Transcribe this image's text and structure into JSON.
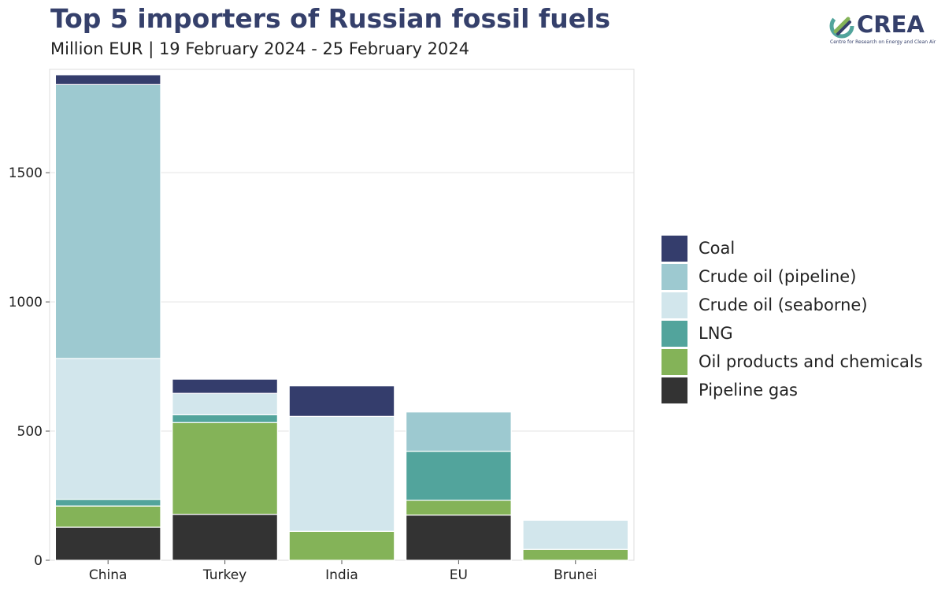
{
  "title": "Top 5 importers of Russian fossil fuels",
  "subtitle": "Million EUR | 19 February 2024 - 25 February 2024",
  "logo": {
    "word": "CREA",
    "tagline": "Centre for Research on Energy and Clean Air",
    "icon": "crea-leaf-icon"
  },
  "chart_data": {
    "type": "bar",
    "stacked": true,
    "categories": [
      "China",
      "Turkey",
      "India",
      "EU",
      "Brunei"
    ],
    "ylim": [
      0,
      1900
    ],
    "yticks": [
      0,
      500,
      1000,
      1500
    ],
    "grid": true,
    "legend_position": "right",
    "series": [
      {
        "name": "Pipeline gas",
        "color": "#333333",
        "values": [
          128,
          178,
          0,
          175,
          0
        ]
      },
      {
        "name": "Oil products and chemicals",
        "color": "#84b358",
        "values": [
          82,
          355,
          112,
          57,
          42
        ]
      },
      {
        "name": "LNG",
        "color": "#52a49c",
        "values": [
          26,
          30,
          0,
          190,
          0
        ]
      },
      {
        "name": "Crude oil (seaborne)",
        "color": "#d2e6ec",
        "values": [
          545,
          83,
          445,
          0,
          113
        ]
      },
      {
        "name": "Crude oil (pipeline)",
        "color": "#9dc9d0",
        "values": [
          1060,
          0,
          0,
          152,
          0
        ]
      },
      {
        "name": "Coal",
        "color": "#343d6c",
        "values": [
          38,
          55,
          118,
          0,
          0
        ]
      }
    ],
    "legend_order": [
      "Coal",
      "Crude oil (pipeline)",
      "Crude oil (seaborne)",
      "LNG",
      "Oil products and chemicals",
      "Pipeline gas"
    ]
  }
}
